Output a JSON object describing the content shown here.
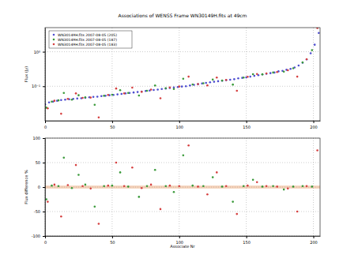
{
  "chart_data": [
    {
      "type": "scatter",
      "title": "Associations of WENSS Frame WN30149H.fits at 49cm",
      "y_label": "Flux (Jy)",
      "xlim": [
        0,
        205
      ],
      "xticks": [
        0,
        50,
        100,
        150,
        200
      ],
      "ylim": [
        0.01,
        5
      ],
      "yticks": [
        {
          "value": 0.1,
          "label": "10⁻¹"
        },
        {
          "value": 1,
          "label": "10⁰"
        }
      ],
      "log": "y",
      "grid": true,
      "legend": "upper left",
      "marker": "circle",
      "series": [
        {
          "name": "WN30149H.fits 2007-08-05 (205)",
          "color": "#4f4fd0",
          "x": [
            0,
            3,
            6,
            9,
            12,
            15,
            18,
            21,
            24,
            27,
            30,
            33,
            36,
            39,
            42,
            45,
            48,
            51,
            54,
            57,
            60,
            63,
            66,
            69,
            72,
            75,
            78,
            81,
            84,
            87,
            90,
            93,
            96,
            99,
            102,
            105,
            108,
            111,
            114,
            117,
            120,
            123,
            126,
            129,
            132,
            135,
            138,
            141,
            144,
            147,
            150,
            153,
            156,
            159,
            162,
            165,
            168,
            171,
            174,
            177,
            180,
            183,
            186,
            189,
            192,
            195,
            198,
            201,
            204
          ],
          "values": [
            0.03,
            0.034,
            0.036,
            0.038,
            0.04,
            0.041,
            0.042,
            0.043,
            0.044,
            0.045,
            0.046,
            0.048,
            0.049,
            0.05,
            0.052,
            0.053,
            0.055,
            0.056,
            0.058,
            0.06,
            0.062,
            0.064,
            0.066,
            0.068,
            0.07,
            0.073,
            0.075,
            0.078,
            0.08,
            0.083,
            0.086,
            0.089,
            0.092,
            0.095,
            0.098,
            0.1,
            0.105,
            0.11,
            0.115,
            0.12,
            0.125,
            0.13,
            0.135,
            0.14,
            0.145,
            0.15,
            0.155,
            0.16,
            0.17,
            0.175,
            0.18,
            0.19,
            0.2,
            0.21,
            0.22,
            0.23,
            0.24,
            0.25,
            0.27,
            0.28,
            0.3,
            0.32,
            0.35,
            0.4,
            0.48,
            0.6,
            0.9,
            1.6,
            3.5
          ]
        },
        {
          "name": "WN30149H.fits 2007-08-05 (187)",
          "color": "#3a9a3a",
          "x": [
            1,
            5,
            10,
            14,
            20,
            25,
            30,
            37,
            44,
            50,
            56,
            62,
            70,
            76,
            82,
            90,
            96,
            103,
            110,
            118,
            125,
            132,
            140,
            148,
            155,
            162,
            170,
            178,
            185,
            192,
            199
          ],
          "values": [
            0.024,
            0.036,
            0.039,
            0.064,
            0.041,
            0.055,
            0.048,
            0.029,
            0.053,
            0.057,
            0.077,
            0.064,
            0.054,
            0.074,
            0.105,
            0.088,
            0.083,
            0.165,
            0.113,
            0.122,
            0.156,
            0.146,
            0.112,
            0.179,
            0.224,
            0.222,
            0.25,
            0.266,
            0.333,
            0.49,
            1.11
          ]
        },
        {
          "name": "WN30149H.fits 2007-08-05 (183)",
          "color": "#d64040",
          "x": [
            2,
            7,
            12,
            17,
            23,
            28,
            34,
            40,
            47,
            53,
            59,
            65,
            72,
            79,
            86,
            93,
            100,
            107,
            114,
            121,
            128,
            135,
            143,
            151,
            158,
            165,
            173,
            181,
            188,
            195,
            203
          ],
          "values": [
            0.023,
            0.038,
            0.016,
            0.043,
            0.062,
            0.046,
            0.047,
            0.0125,
            0.056,
            0.086,
            0.062,
            0.091,
            0.069,
            0.08,
            0.045,
            0.092,
            0.098,
            0.19,
            0.116,
            0.106,
            0.179,
            0.153,
            0.074,
            0.188,
            0.226,
            0.235,
            0.258,
            0.291,
            0.19,
            0.61,
            4.9
          ]
        }
      ]
    },
    {
      "type": "scatter",
      "x_label": "Associate Nr",
      "y_label": "Flux difference %",
      "xlim": [
        0,
        205
      ],
      "xticks": [
        0,
        50,
        100,
        150,
        200
      ],
      "ylim": [
        -100,
        100
      ],
      "yticks": [
        -100,
        -50,
        0,
        50,
        100
      ],
      "grid": true,
      "marker": "circle",
      "band": [
        -3,
        3
      ],
      "band_color": "#f2c6a6",
      "series": [
        {
          "color": "#3a9a3a",
          "x": [
            1,
            5,
            10,
            14,
            20,
            25,
            30,
            37,
            44,
            50,
            56,
            62,
            70,
            76,
            82,
            90,
            96,
            103,
            110,
            118,
            125,
            132,
            140,
            148,
            155,
            162,
            170,
            178,
            185,
            192,
            199
          ],
          "values": [
            -25,
            3,
            2,
            60,
            -2,
            25,
            5,
            -40,
            2,
            3,
            30,
            1,
            -20,
            2,
            35,
            2,
            -10,
            65,
            3,
            2,
            20,
            1,
            -30,
            2,
            15,
            1,
            2,
            -5,
            1,
            2,
            1
          ]
        },
        {
          "color": "#d64040",
          "x": [
            2,
            7,
            12,
            17,
            23,
            28,
            34,
            40,
            47,
            53,
            59,
            65,
            72,
            79,
            86,
            93,
            100,
            107,
            114,
            121,
            128,
            135,
            143,
            151,
            158,
            165,
            173,
            181,
            188,
            195,
            203
          ],
          "values": [
            -30,
            5,
            -60,
            4,
            45,
            2,
            -3,
            -75,
            3,
            50,
            2,
            40,
            -2,
            5,
            -45,
            3,
            2,
            85,
            1,
            -15,
            30,
            2,
            -55,
            3,
            10,
            2,
            1,
            -3,
            -50,
            2,
            75
          ]
        }
      ]
    }
  ]
}
